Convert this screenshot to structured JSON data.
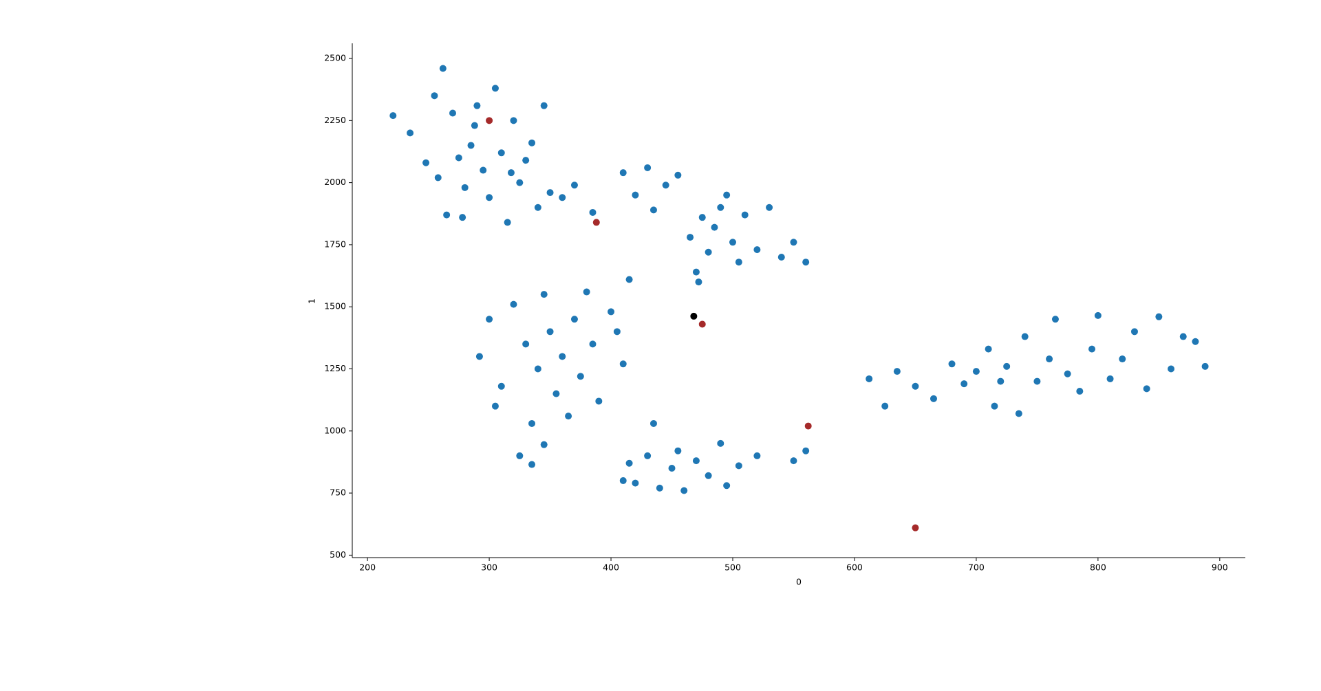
{
  "chart_data": {
    "type": "scatter",
    "xlabel": "0",
    "ylabel": "1",
    "xlim": [
      187.5,
      921
    ],
    "ylim": [
      490,
      2561
    ],
    "xticks": [
      200,
      300,
      400,
      500,
      600,
      700,
      800,
      900
    ],
    "yticks": [
      500,
      750,
      1000,
      1250,
      1500,
      1750,
      2000,
      2250,
      2500
    ],
    "series": [
      {
        "color": "#1f77b4",
        "x": [
          221,
          235,
          248,
          255,
          262,
          270,
          275,
          280,
          285,
          290,
          295,
          300,
          305,
          310,
          315,
          320,
          325,
          330,
          340,
          345,
          350,
          360,
          370,
          385,
          265,
          278,
          258,
          288,
          318,
          335,
          410,
          420,
          430,
          435,
          445,
          455,
          465,
          470,
          475,
          480,
          490,
          500,
          510,
          520,
          530,
          540,
          550,
          560,
          485,
          505,
          495,
          472,
          292,
          300,
          305,
          310,
          320,
          325,
          330,
          335,
          340,
          345,
          350,
          355,
          360,
          365,
          370,
          375,
          380,
          385,
          390,
          400,
          405,
          410,
          415,
          335,
          345,
          410,
          415,
          420,
          430,
          435,
          440,
          450,
          455,
          460,
          470,
          480,
          490,
          495,
          505,
          520,
          550,
          560,
          612,
          625,
          635,
          650,
          665,
          680,
          690,
          700,
          710,
          715,
          725,
          735,
          740,
          750,
          765,
          775,
          785,
          795,
          800,
          810,
          820,
          830,
          840,
          850,
          860,
          870,
          880,
          888,
          760,
          720
        ],
        "values": [
          2270,
          2200,
          2080,
          2350,
          2460,
          2280,
          2100,
          1980,
          2150,
          2310,
          2050,
          1940,
          2380,
          2120,
          1840,
          2250,
          2000,
          2090,
          1900,
          2310,
          1960,
          1940,
          1990,
          1880,
          1870,
          1860,
          2020,
          2230,
          2040,
          2160,
          2040,
          1950,
          2060,
          1890,
          1990,
          2030,
          1780,
          1640,
          1860,
          1720,
          1900,
          1760,
          1870,
          1730,
          1900,
          1700,
          1760,
          1680,
          1820,
          1680,
          1950,
          1600,
          1300,
          1450,
          1100,
          1180,
          1510,
          900,
          1350,
          1030,
          1250,
          1550,
          1400,
          1150,
          1300,
          1060,
          1450,
          1220,
          1560,
          1350,
          1120,
          1480,
          1400,
          1270,
          1610,
          865,
          945,
          800,
          870,
          790,
          900,
          1030,
          770,
          850,
          920,
          760,
          880,
          820,
          950,
          780,
          860,
          900,
          880,
          920,
          1210,
          1100,
          1240,
          1180,
          1130,
          1270,
          1190,
          1240,
          1330,
          1100,
          1260,
          1070,
          1380,
          1200,
          1450,
          1230,
          1160,
          1330,
          1465,
          1210,
          1290,
          1400,
          1170,
          1460,
          1250,
          1380,
          1360,
          1260,
          1290,
          1200
        ]
      },
      {
        "color": "#a52a2a",
        "x": [
          300,
          388,
          475,
          562,
          650
        ],
        "values": [
          2250,
          1840,
          1430,
          1020,
          610
        ]
      },
      {
        "color": "#000000",
        "x": [
          468
        ],
        "values": [
          1462
        ]
      }
    ]
  }
}
